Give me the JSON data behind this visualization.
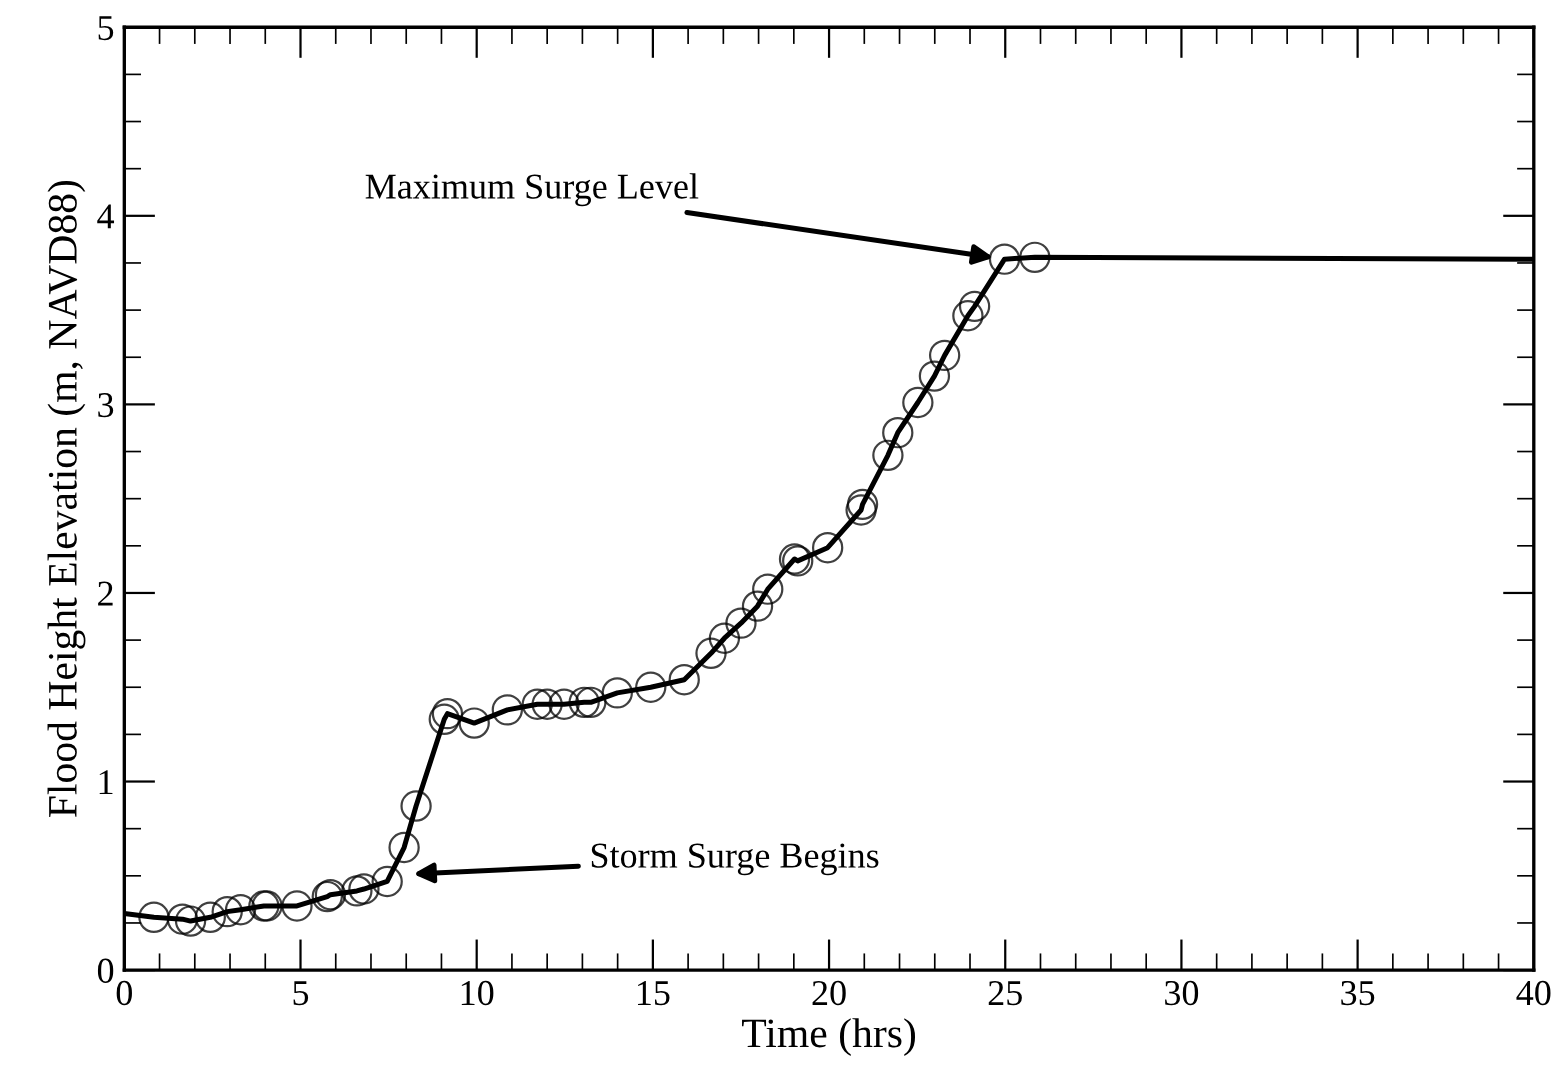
{
  "chart_data": {
    "type": "line",
    "xlabel": "Time (hrs)",
    "ylabel": "Flood Height Elevation (m, NAVD88)",
    "xlim": [
      0,
      40
    ],
    "ylim": [
      0,
      5
    ],
    "xticks": [
      0,
      5,
      10,
      15,
      20,
      25,
      30,
      35,
      40
    ],
    "yticks": [
      0,
      1,
      2,
      3,
      4,
      5
    ],
    "grid": false,
    "legend": false,
    "series": [
      {
        "color": "#000000",
        "marker": "none",
        "line_style": "solid",
        "x": [
          0,
          0.84,
          1.65,
          1.88,
          2.44,
          2.92,
          3.3,
          3.96,
          4.05,
          4.9,
          5.76,
          5.85,
          6.6,
          6.8,
          7.46,
          7.94,
          8.28,
          9.08,
          9.17,
          9.93,
          10.87,
          11.72,
          12.0,
          12.48,
          13.05,
          13.24,
          13.99,
          14.94,
          15.89,
          16.65,
          17.03,
          17.5,
          17.97,
          18.26,
          19.02,
          19.11,
          19.96,
          20.91,
          20.95,
          21.67,
          21.95,
          22.52,
          22.99,
          23.28,
          23.94,
          24.13,
          24.98,
          25.84,
          40
        ],
        "values": [
          0.3,
          0.28,
          0.27,
          0.26,
          0.28,
          0.31,
          0.32,
          0.34,
          0.34,
          0.34,
          0.39,
          0.4,
          0.42,
          0.43,
          0.47,
          0.65,
          0.87,
          1.33,
          1.36,
          1.31,
          1.38,
          1.41,
          1.41,
          1.41,
          1.42,
          1.42,
          1.47,
          1.5,
          1.54,
          1.68,
          1.76,
          1.84,
          1.93,
          2.02,
          2.18,
          2.17,
          2.24,
          2.44,
          2.47,
          2.73,
          2.85,
          3.01,
          3.15,
          3.26,
          3.47,
          3.52,
          3.77,
          3.78,
          3.77
        ]
      },
      {
        "type": "scatter",
        "color": "#000000",
        "marker": "circle",
        "x": [
          0.84,
          1.65,
          1.88,
          2.44,
          2.92,
          3.3,
          3.96,
          4.05,
          4.9,
          5.76,
          5.85,
          6.6,
          6.8,
          7.46,
          7.94,
          8.28,
          9.08,
          9.17,
          9.93,
          10.87,
          11.72,
          12.0,
          12.48,
          13.05,
          13.24,
          13.99,
          14.94,
          15.89,
          16.65,
          17.03,
          17.5,
          17.97,
          18.26,
          19.02,
          19.11,
          19.96,
          20.91,
          20.95,
          21.67,
          21.95,
          22.52,
          22.99,
          23.28,
          23.94,
          24.13,
          24.98,
          25.84
        ],
        "values": [
          0.28,
          0.27,
          0.26,
          0.28,
          0.31,
          0.32,
          0.34,
          0.34,
          0.34,
          0.39,
          0.4,
          0.42,
          0.43,
          0.47,
          0.65,
          0.87,
          1.33,
          1.36,
          1.31,
          1.38,
          1.41,
          1.41,
          1.41,
          1.42,
          1.42,
          1.47,
          1.5,
          1.54,
          1.68,
          1.76,
          1.84,
          1.93,
          2.02,
          2.18,
          2.17,
          2.24,
          2.44,
          2.47,
          2.73,
          2.85,
          3.01,
          3.15,
          3.26,
          3.47,
          3.52,
          3.77,
          3.78
        ]
      }
    ],
    "annotations": [
      {
        "text": "Maximum Surge Level",
        "x": 24.98,
        "y": 3.77
      },
      "Storm Surge Begins"
    ]
  }
}
